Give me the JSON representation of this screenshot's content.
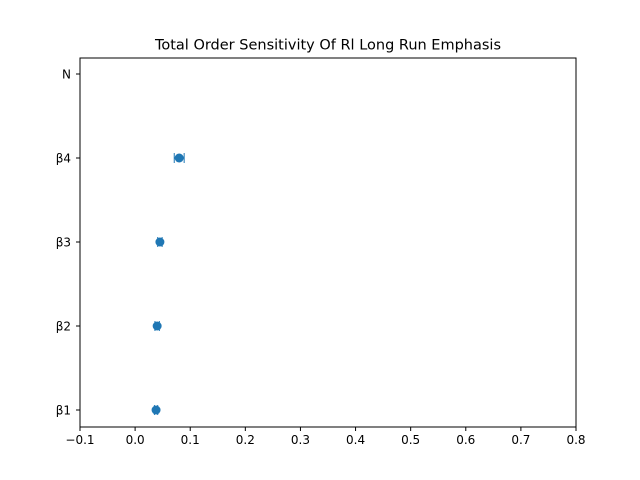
{
  "chart_data": {
    "type": "scatter",
    "title": "Total Order Sensitivity Of Rl Long Run Emphasis",
    "xlabel": "",
    "ylabel": "",
    "xlim": [
      -0.1,
      0.8
    ],
    "xticks": [
      -0.1,
      0.0,
      0.1,
      0.2,
      0.3,
      0.4,
      0.5,
      0.6,
      0.7,
      0.8
    ],
    "xtick_labels": [
      "−0.1",
      "0.0",
      "0.1",
      "0.2",
      "0.3",
      "0.4",
      "0.5",
      "0.6",
      "0.7",
      "0.8"
    ],
    "categories": [
      "β1",
      "β2",
      "β3",
      "β4",
      "N"
    ],
    "values": [
      0.038,
      0.04,
      0.045,
      0.08,
      null
    ],
    "errors": [
      0.003,
      0.004,
      0.004,
      0.009,
      null
    ],
    "grid": false,
    "legend": "none",
    "color": "#1f77b4"
  }
}
